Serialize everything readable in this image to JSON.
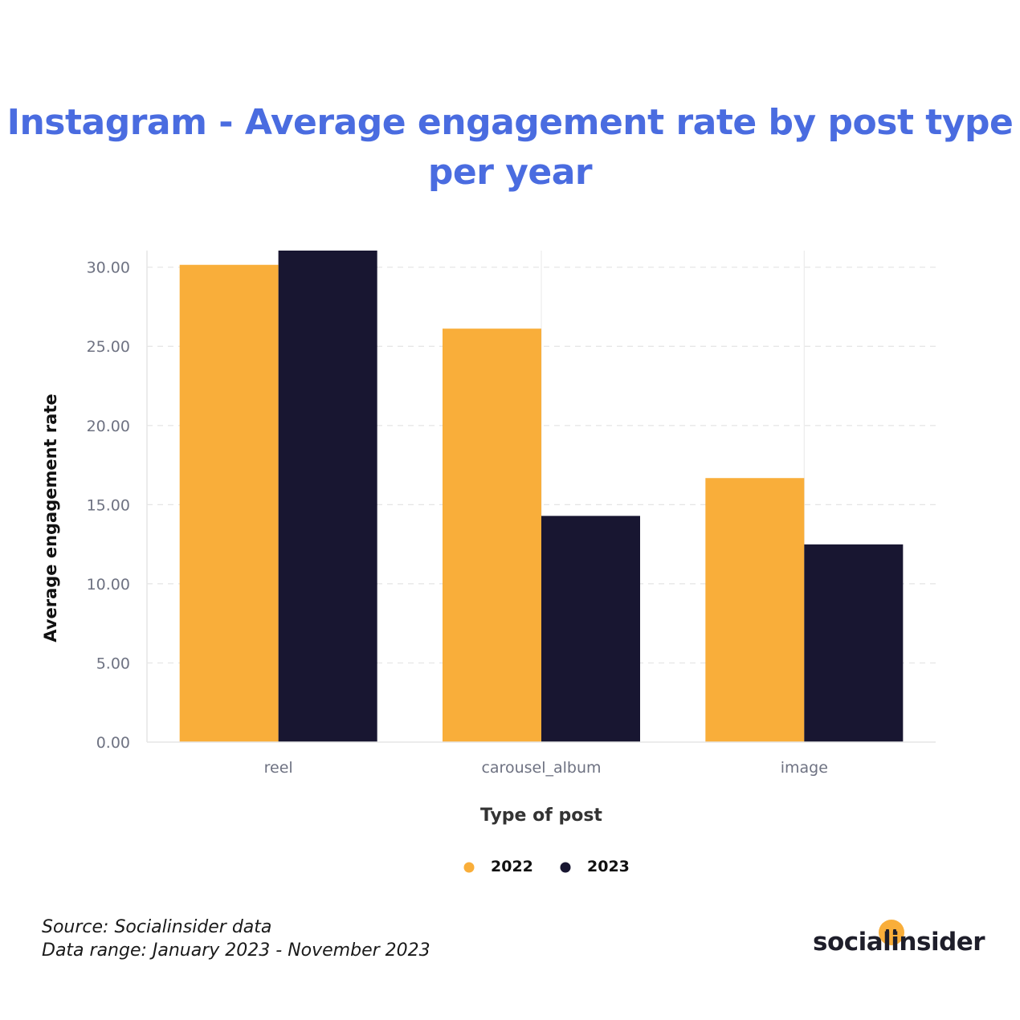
{
  "title_lines": [
    "Instagram - Average engagement rate by post type",
    "per year"
  ],
  "chart_data": {
    "type": "bar",
    "title": "Instagram - Average engagement rate by post type per year",
    "xlabel": "Type of post",
    "ylabel": "Average engagement rate",
    "categories": [
      "reel",
      "carousel_album",
      "image"
    ],
    "series": [
      {
        "name": "2022",
        "color": "#F9AE3A",
        "values": [
          30.15,
          26.12,
          16.68
        ]
      },
      {
        "name": "2023",
        "color": "#181631",
        "values": [
          31.05,
          14.29,
          12.49
        ]
      }
    ],
    "ylim": [
      0,
      31.05
    ],
    "yticks": [
      0,
      5,
      10,
      15,
      20,
      25,
      30
    ],
    "ytick_labels": [
      "0.00",
      "5.00",
      "10.00",
      "15.00",
      "20.00",
      "25.00",
      "30.00"
    ],
    "legend_position": "bottom-center",
    "grid": true
  },
  "footer": {
    "source": "Source: Socialinsider data",
    "range": "Data range: January 2023 - November 2023"
  },
  "brand": {
    "name": "socialinsider",
    "dot_color": "#F9AE3A"
  }
}
